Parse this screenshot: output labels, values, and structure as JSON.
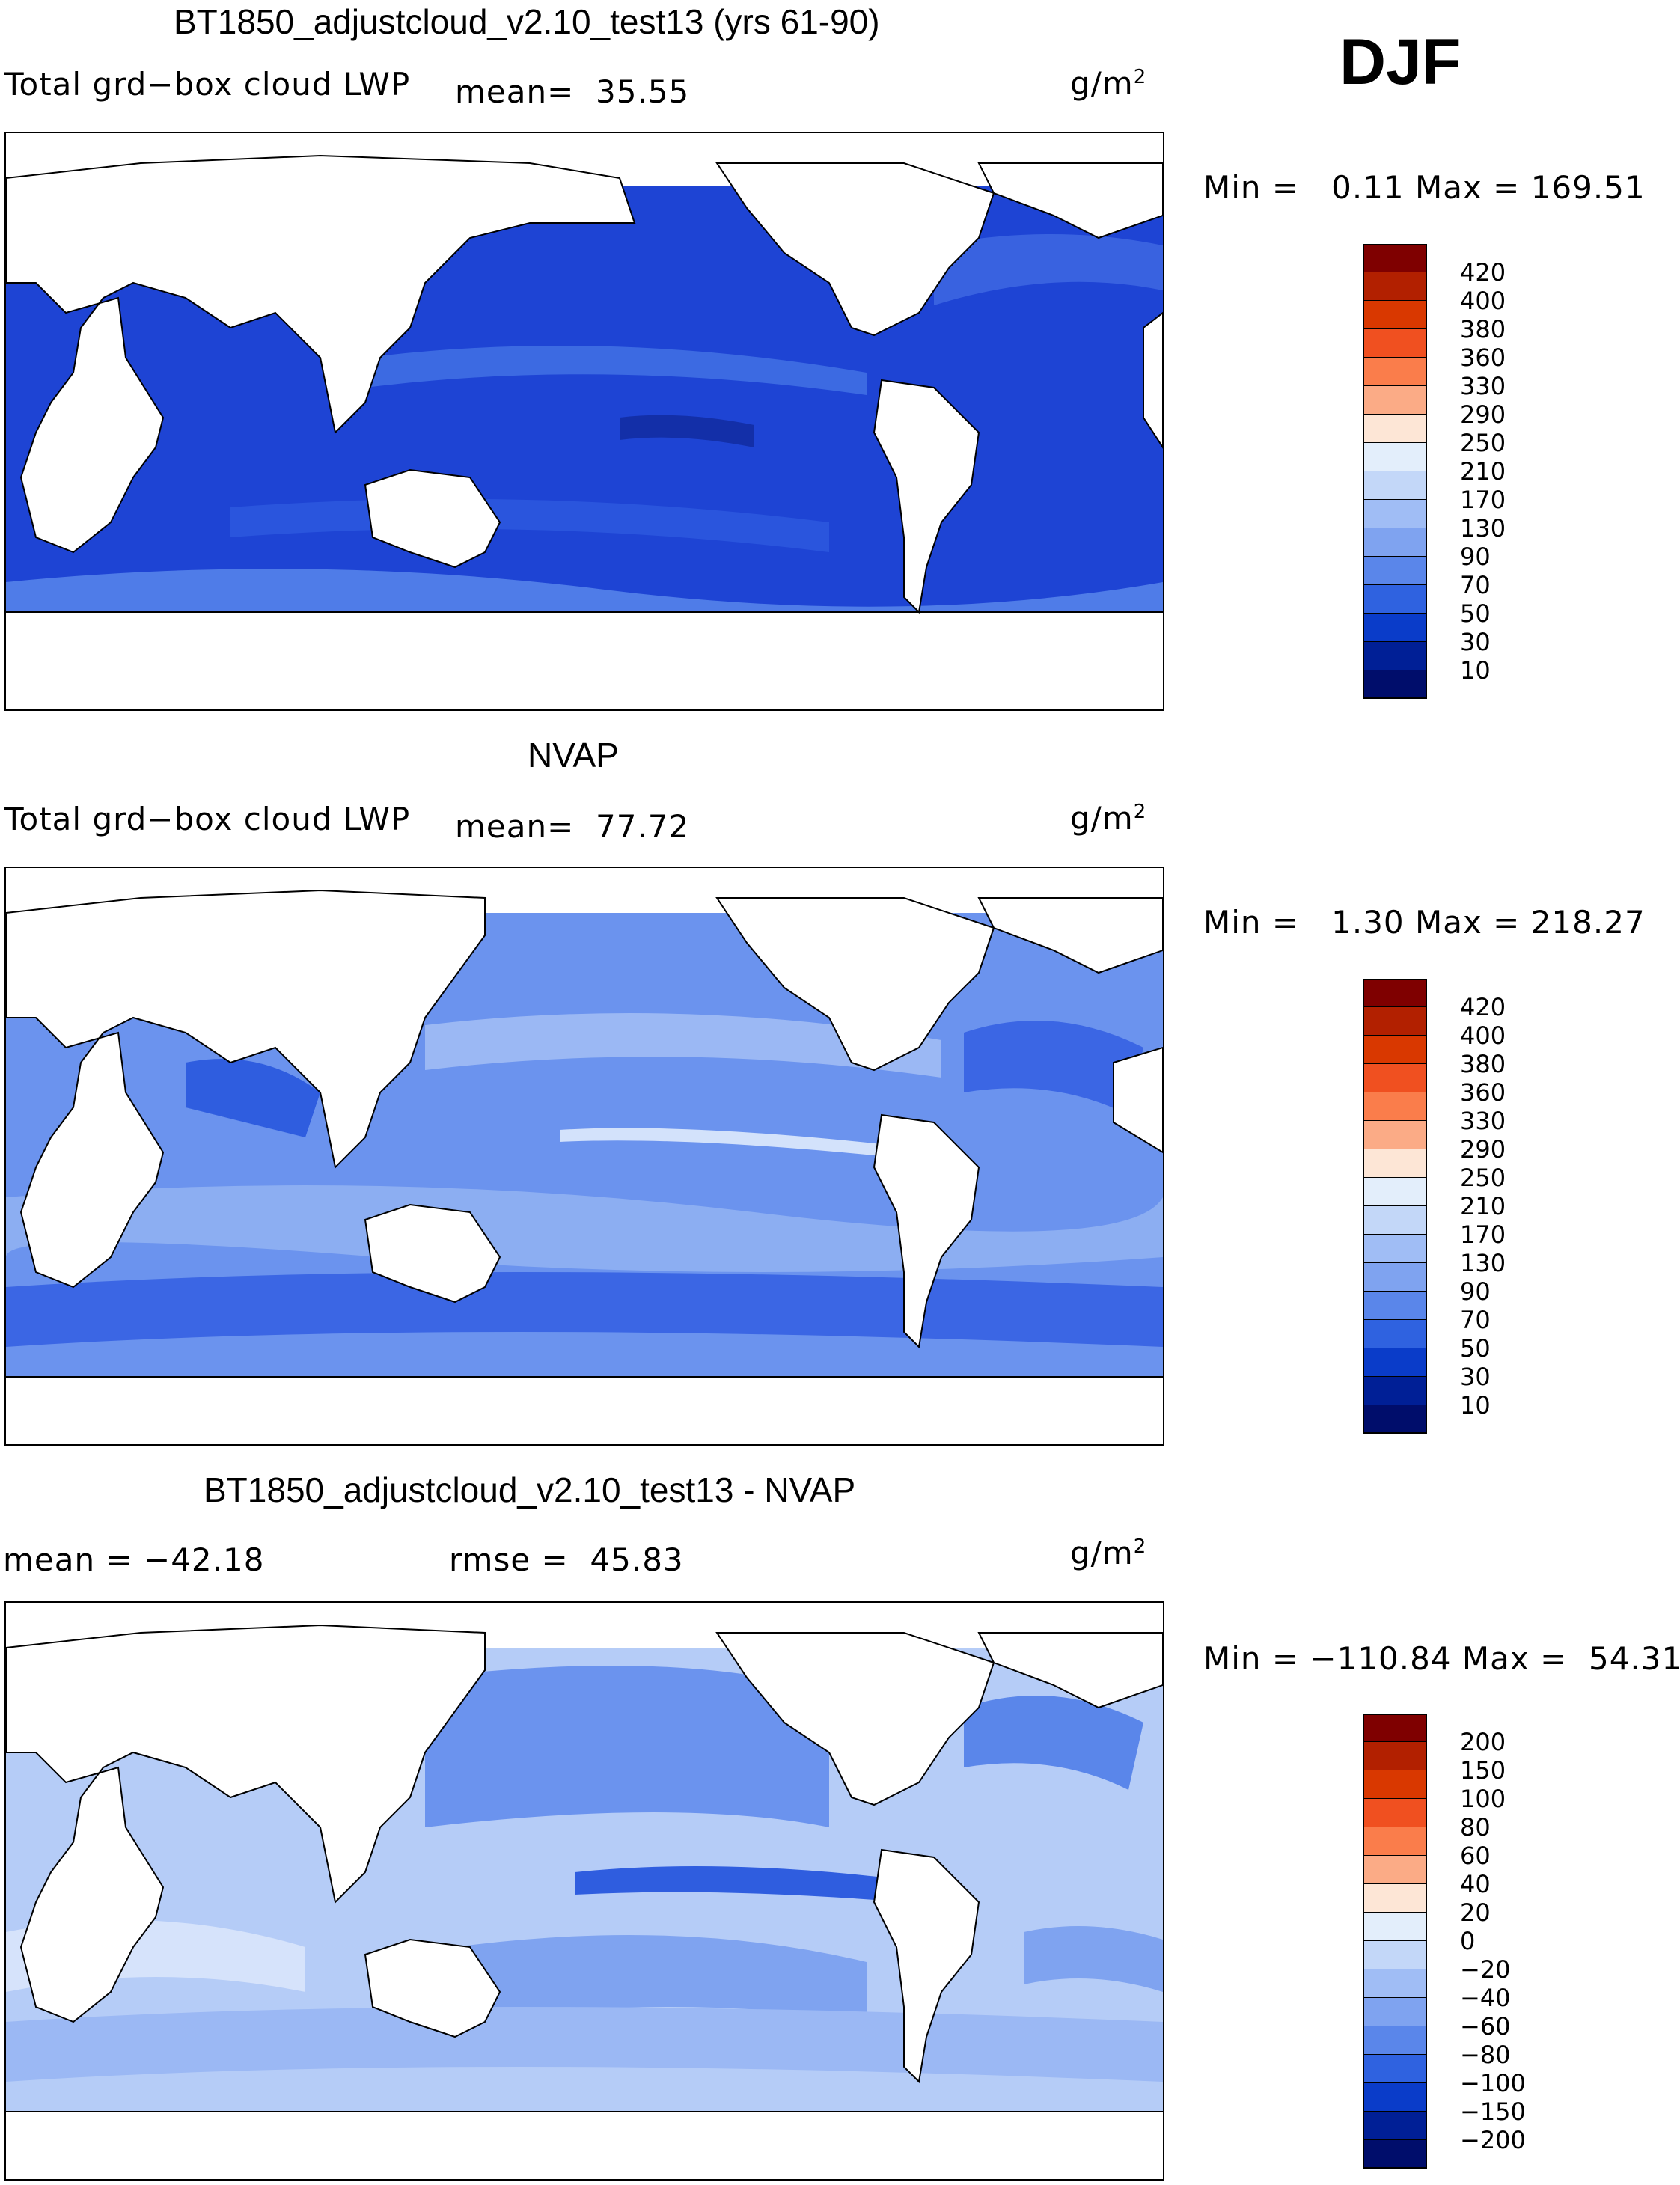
{
  "season": "DJF",
  "panels": [
    {
      "title": "BT1850_adjustcloud_v2.10_test13 (yrs 61-90)",
      "left_label": "Total grd−box cloud LWP",
      "stat1": "mean=  35.55",
      "units": "g/m",
      "units_exp": "2",
      "minmax": "Min =   0.11 Max = 169.51",
      "colorbar": {
        "labels": [
          "420",
          "400",
          "380",
          "360",
          "330",
          "290",
          "250",
          "210",
          "170",
          "130",
          "90",
          "70",
          "50",
          "30",
          "10"
        ],
        "colors": [
          "#7f0000",
          "#b22000",
          "#d93800",
          "#f05020",
          "#fa7d4b",
          "#fbab86",
          "#fde6d6",
          "#e3eefb",
          "#c3d7f8",
          "#a0bdf5",
          "#7fa3f0",
          "#5a86ea",
          "#2f62e0",
          "#0a3cc9",
          "#001f96",
          "#000d6b"
        ]
      }
    },
    {
      "title": "NVAP",
      "left_label": "Total grd−box cloud LWP",
      "stat1": "mean=  77.72",
      "units": "g/m",
      "units_exp": "2",
      "minmax": "Min =   1.30 Max = 218.27",
      "colorbar": {
        "labels": [
          "420",
          "400",
          "380",
          "360",
          "330",
          "290",
          "250",
          "210",
          "170",
          "130",
          "90",
          "70",
          "50",
          "30",
          "10"
        ],
        "colors": [
          "#7f0000",
          "#b22000",
          "#d93800",
          "#f05020",
          "#fa7d4b",
          "#fbab86",
          "#fde6d6",
          "#e3eefb",
          "#c3d7f8",
          "#a0bdf5",
          "#7fa3f0",
          "#5a86ea",
          "#2f62e0",
          "#0a3cc9",
          "#001f96",
          "#000d6b"
        ]
      }
    },
    {
      "title": "BT1850_adjustcloud_v2.10_test13 - NVAP",
      "left_label": "mean = −42.18",
      "stat1": "rmse =  45.83",
      "units": "g/m",
      "units_exp": "2",
      "minmax": "Min = −110.84 Max =  54.31",
      "colorbar": {
        "labels": [
          "200",
          "150",
          "100",
          "80",
          "60",
          "40",
          "20",
          "0",
          "−20",
          "−40",
          "−60",
          "−80",
          "−100",
          "−150",
          "−200"
        ],
        "colors": [
          "#7f0000",
          "#b22000",
          "#d93800",
          "#f05020",
          "#fa7d4b",
          "#fbab86",
          "#fde6d6",
          "#e3eefb",
          "#c3d7f8",
          "#a0bdf5",
          "#7fa3f0",
          "#5a86ea",
          "#2f62e0",
          "#0a3cc9",
          "#001f96",
          "#000d6b"
        ]
      }
    }
  ],
  "colors": {
    "ocean_dark": "#1a3fd0",
    "ocean_mid": "#3b66e4",
    "ocean_light": "#87a8f0",
    "land": "#ffffff"
  }
}
